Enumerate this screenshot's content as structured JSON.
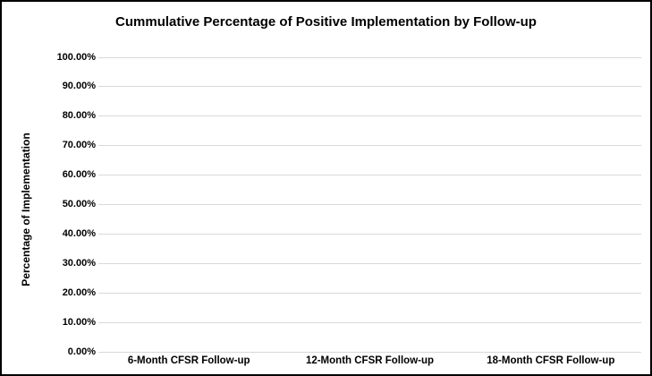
{
  "chart": {
    "title": "Cummulative Percentage of Positive Implementation by Follow-up",
    "y_axis_title": "Percentage of Implementation"
  },
  "chart_data": {
    "type": "bar",
    "title": "Cummulative Percentage of Positive Implementation by Follow-up",
    "categories": [
      "6-Month CFSR Follow-up",
      "12-Month CFSR Follow-up",
      "18-Month CFSR Follow-up"
    ],
    "series": [],
    "plotted_values": "none - plot area is empty, no bars/lines/points rendered",
    "xlabel": "",
    "ylabel": "Percentage of Implementation",
    "ylim": [
      0,
      100
    ],
    "y_tick_step": 10,
    "y_tick_labels": [
      "0.00%",
      "10.00%",
      "20.00%",
      "30.00%",
      "40.00%",
      "50.00%",
      "60.00%",
      "70.00%",
      "80.00%",
      "90.00%",
      "100.00%"
    ],
    "grid": true,
    "legend": false
  },
  "colors": {
    "gridline": "#d9d9d9",
    "text": "#000000",
    "background": "#ffffff",
    "border": "#000000"
  }
}
